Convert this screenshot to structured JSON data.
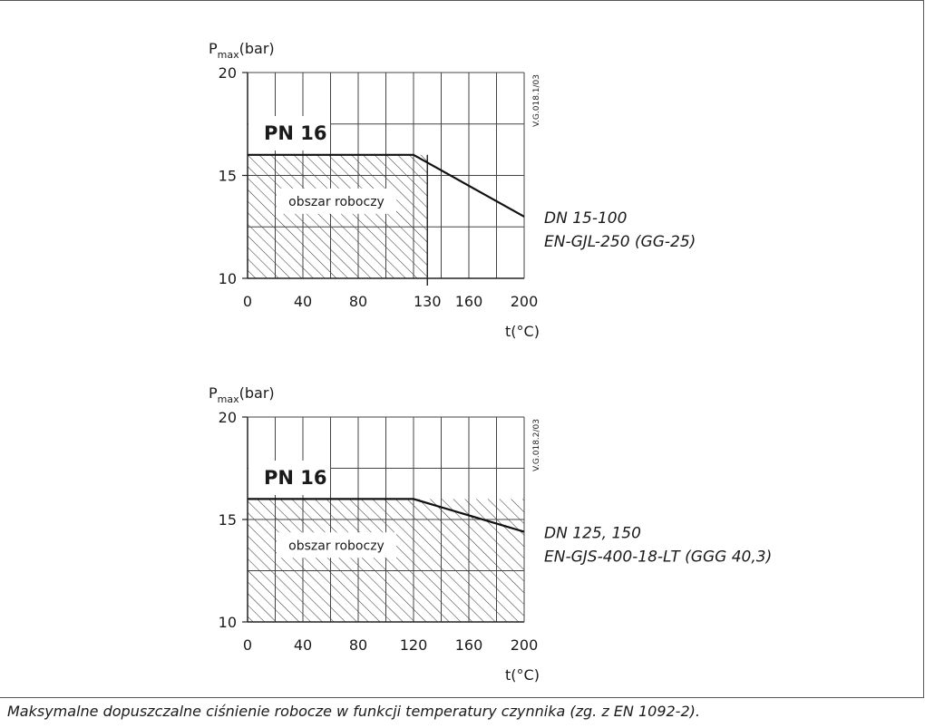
{
  "chart_data": [
    {
      "type": "line",
      "ylabel_main": "P",
      "ylabel_sub": "max",
      "ylabel_unit": "(bar)",
      "xlabel": "t(°C)",
      "xlim": [
        0,
        200
      ],
      "ylim": [
        10,
        20
      ],
      "x_ticks": [
        0,
        40,
        80,
        130,
        160,
        200
      ],
      "y_ticks": [
        10,
        15,
        20
      ],
      "grid": true,
      "rating_label": "PN 16",
      "area_label": "obszar roboczy",
      "working_area": {
        "x_max": 130,
        "y_max": 16
      },
      "series": [
        {
          "x": [
            0,
            120,
            200
          ],
          "y": [
            16,
            16,
            13
          ]
        }
      ],
      "annotation_lines": [
        "DN 15-100",
        "EN-GJL-250 (GG-25)"
      ],
      "code": "V.G.018.1/03"
    },
    {
      "type": "line",
      "ylabel_main": "P",
      "ylabel_sub": "max",
      "ylabel_unit": "(bar)",
      "xlabel": "t(°C)",
      "xlim": [
        0,
        200
      ],
      "ylim": [
        10,
        20
      ],
      "x_ticks": [
        0,
        40,
        80,
        120,
        160,
        200
      ],
      "y_ticks": [
        10,
        15,
        20
      ],
      "grid": true,
      "rating_label": "PN 16",
      "area_label": "obszar roboczy",
      "working_area": {
        "x_max": 200,
        "y_max": 16
      },
      "series": [
        {
          "x": [
            0,
            120,
            200
          ],
          "y": [
            16,
            16,
            14.4
          ]
        }
      ],
      "annotation_lines": [
        "DN 125, 150",
        "EN-GJS-400-18-LT (GGG 40,3)"
      ],
      "code": "V.G.018.2/03"
    }
  ],
  "caption": "Maksymalne dopuszczalne ciśnienie robocze w funkcji temperatury czynnika (zg. z EN 1092-2)."
}
